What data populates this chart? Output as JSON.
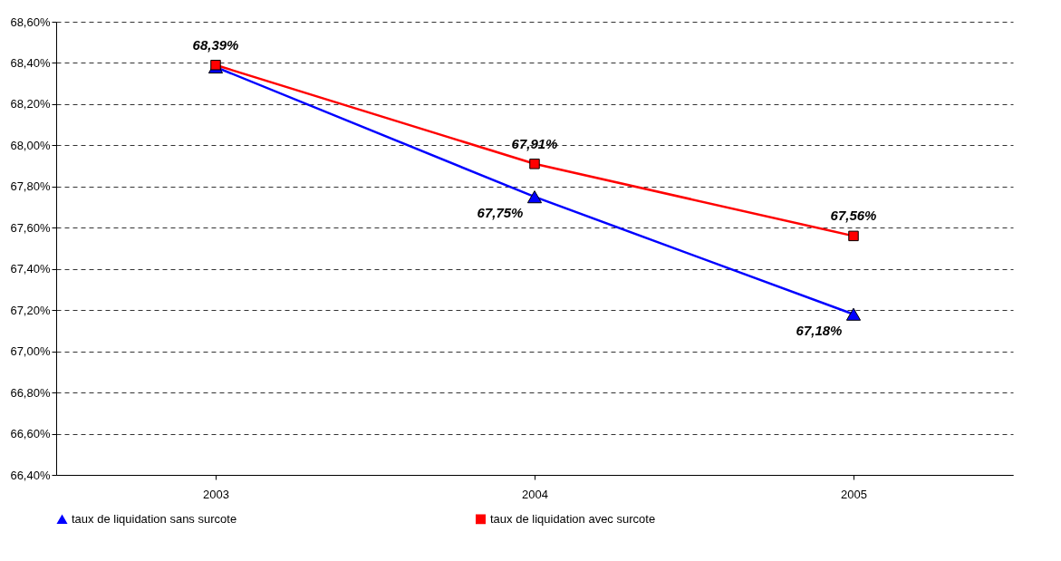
{
  "chart_data": {
    "type": "line",
    "categories": [
      "2003",
      "2004",
      "2005"
    ],
    "series": [
      {
        "name": "taux de liquidation sans surcote",
        "color": "#0000ff",
        "marker": "triangle",
        "values": [
          68.38,
          67.75,
          67.18
        ],
        "value_labels": [
          null,
          "67,75%",
          "67,18%"
        ]
      },
      {
        "name": "taux de liquidation avec surcote",
        "color": "#ff0000",
        "marker": "square",
        "values": [
          68.39,
          67.91,
          67.56
        ],
        "value_labels": [
          "68,39%",
          "67,91%",
          "67,56%"
        ]
      }
    ],
    "ylim": [
      66.4,
      68.6
    ],
    "yticks": [
      {
        "value": 66.4,
        "label": "66,40%"
      },
      {
        "value": 66.6,
        "label": "66,60%"
      },
      {
        "value": 66.8,
        "label": "66,80%"
      },
      {
        "value": 67.0,
        "label": "67,00%"
      },
      {
        "value": 67.2,
        "label": "67,20%"
      },
      {
        "value": 67.4,
        "label": "67,40%"
      },
      {
        "value": 67.6,
        "label": "67,60%"
      },
      {
        "value": 67.8,
        "label": "67,80%"
      },
      {
        "value": 68.0,
        "label": "68,00%"
      },
      {
        "value": 68.2,
        "label": "68,20%"
      },
      {
        "value": 68.4,
        "label": "68,40%"
      },
      {
        "value": 68.6,
        "label": "68,60%"
      }
    ],
    "grid": "y",
    "legend": "bottom",
    "line_style": "solid"
  }
}
